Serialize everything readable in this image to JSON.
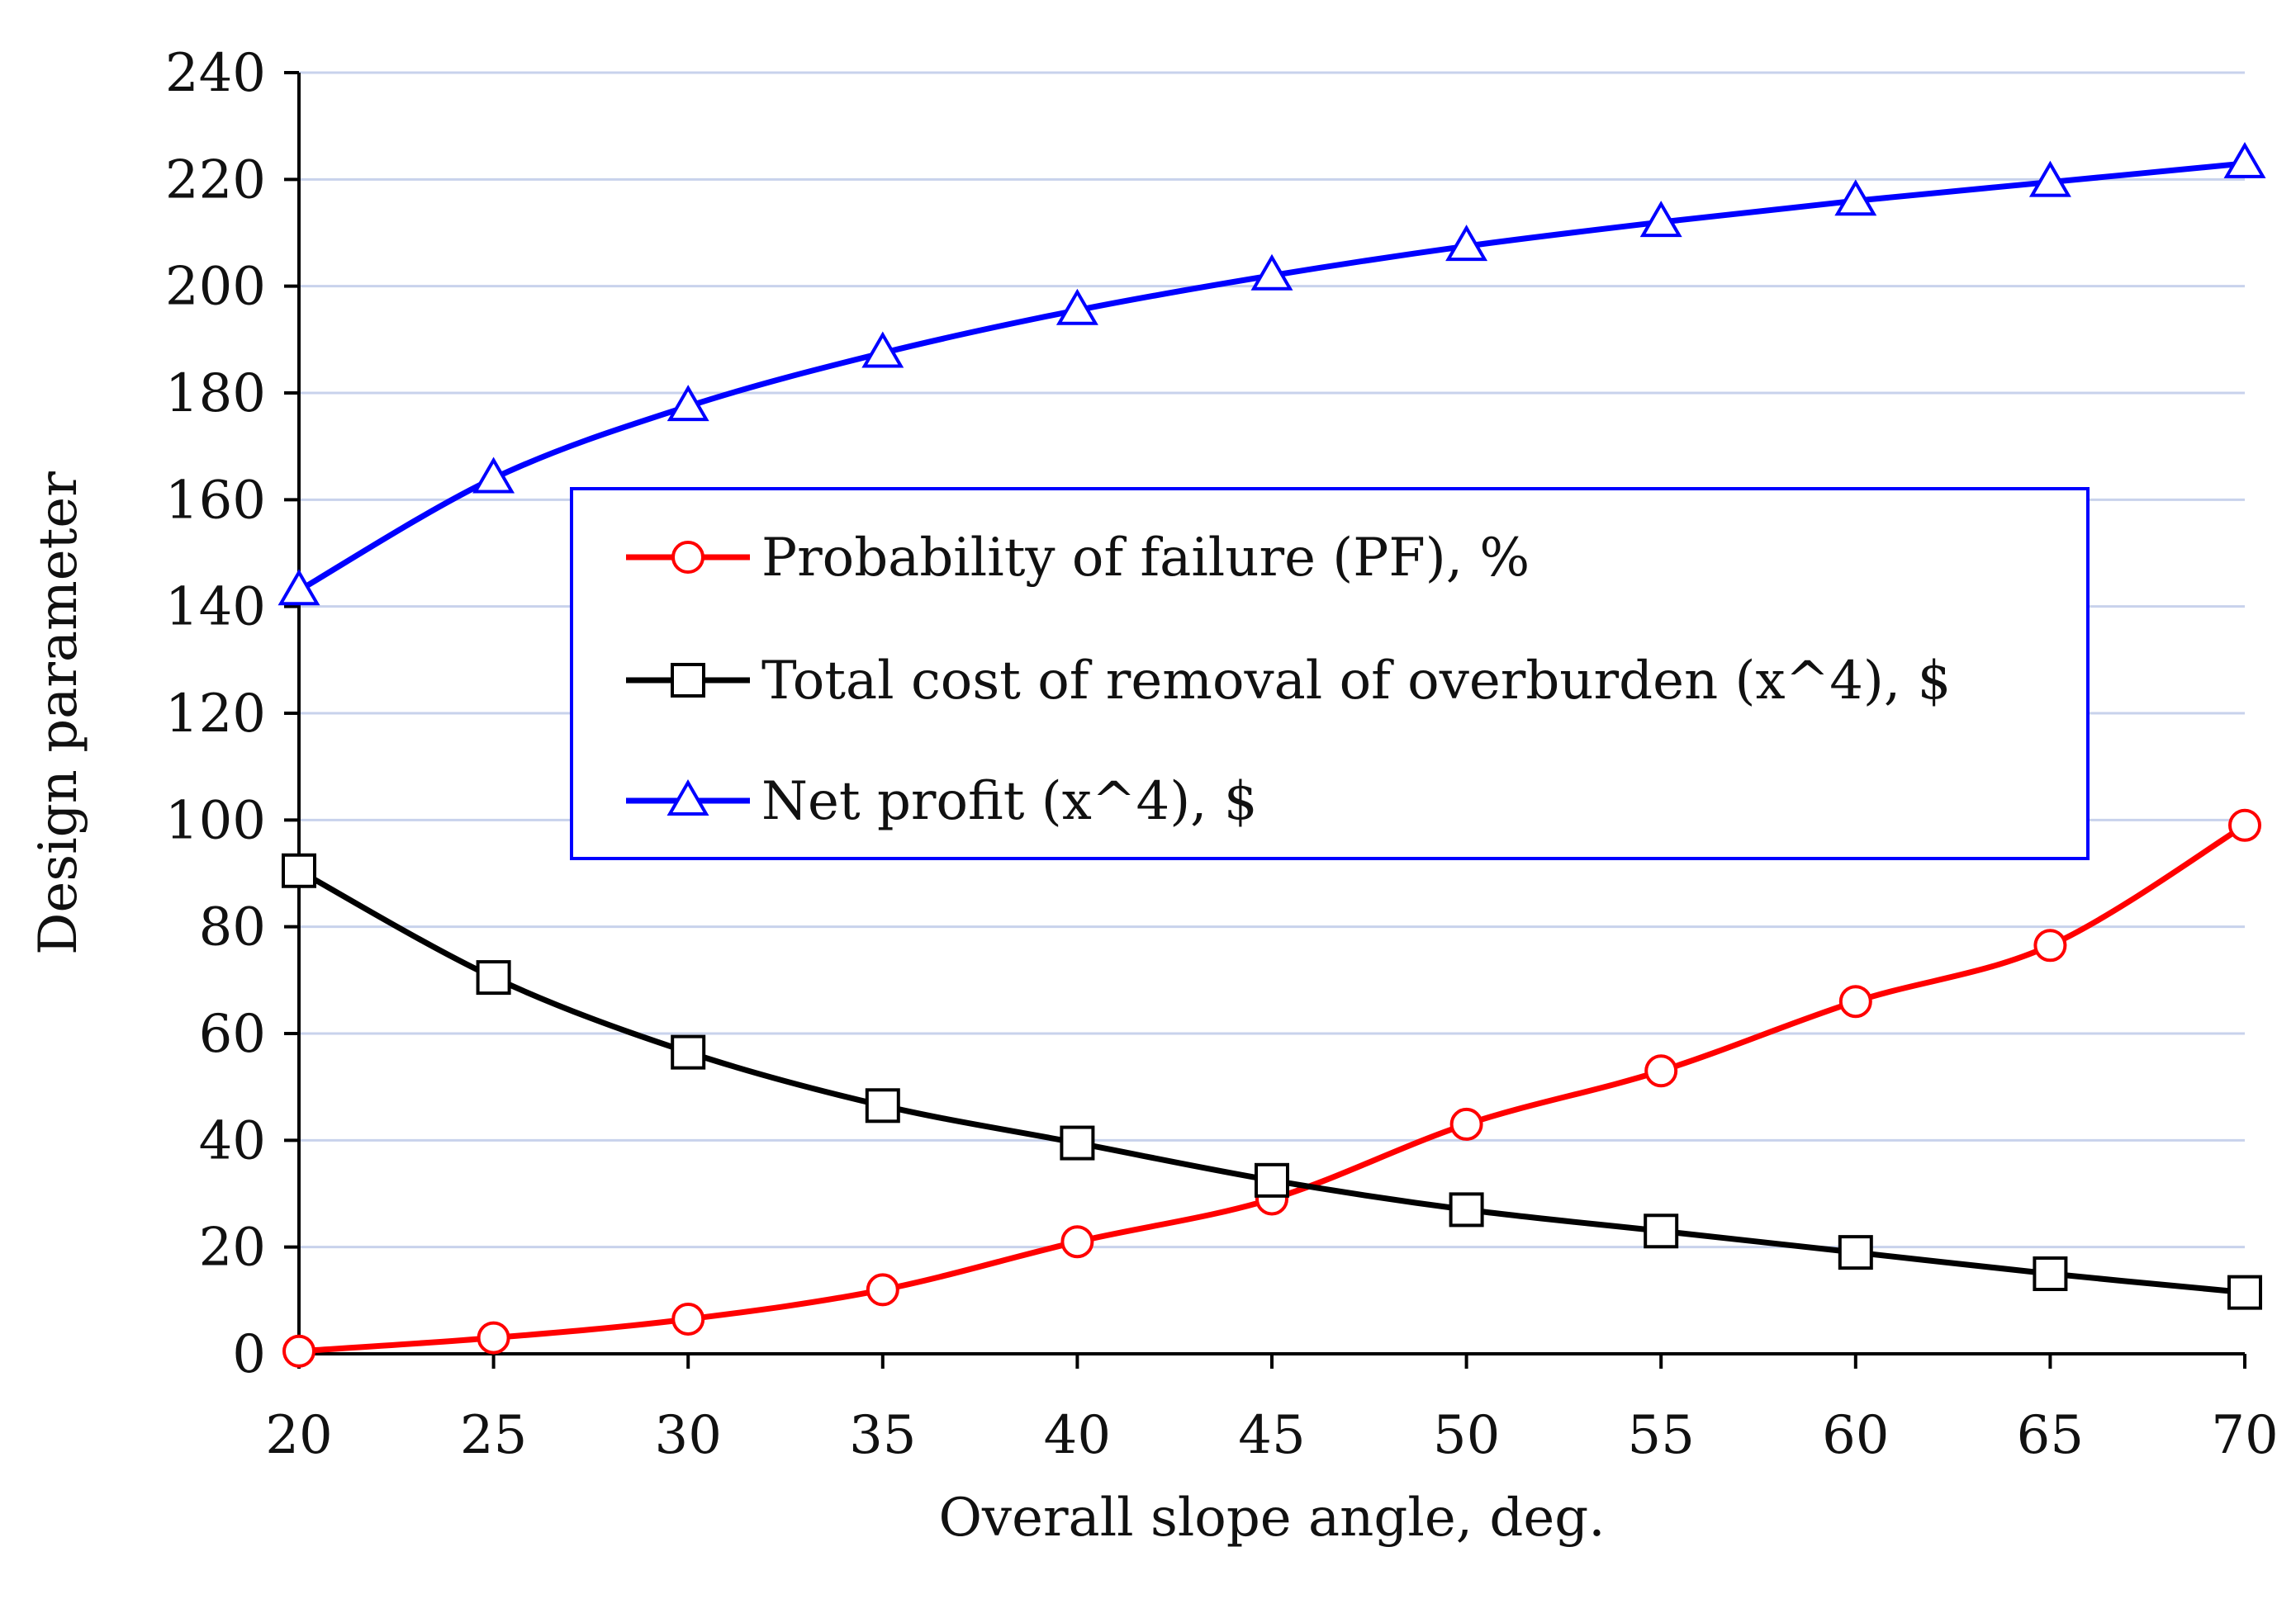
{
  "chart_data": {
    "type": "line",
    "xlabel": "Overall slope angle, deg.",
    "ylabel": "Design parameter",
    "xlim": [
      20,
      70
    ],
    "ylim": [
      0,
      240
    ],
    "x_ticks": [
      20,
      25,
      30,
      35,
      40,
      45,
      50,
      55,
      60,
      65,
      70
    ],
    "y_ticks": [
      0,
      20,
      40,
      60,
      80,
      100,
      120,
      140,
      160,
      180,
      200,
      220,
      240
    ],
    "x_tick_labels": [
      "20",
      "25",
      "30",
      "35",
      "40",
      "45",
      "50",
      "55",
      "60",
      "65",
      "70"
    ],
    "y_tick_labels": [
      "0",
      "20",
      "40",
      "60",
      "80",
      "100",
      "120",
      "140",
      "160",
      "180",
      "200",
      "220",
      "240"
    ],
    "grid": "horizontal",
    "legend_position": "center",
    "x": [
      20,
      25,
      30,
      35,
      40,
      45,
      50,
      55,
      60,
      65,
      70
    ],
    "series": [
      {
        "name": "Probability of failure (PF), %",
        "color": "#ff0000",
        "marker": "circle",
        "values": [
          0.5,
          3,
          6.5,
          12,
          21,
          29,
          43,
          53,
          66,
          76.5,
          99
        ]
      },
      {
        "name": "Total cost of removal of overburden (x^4), $",
        "color": "#000000",
        "marker": "square",
        "values": [
          90.5,
          70.5,
          56.5,
          46.5,
          39.5,
          32.5,
          27,
          23,
          19,
          15,
          11.5
        ]
      },
      {
        "name": "Net profit (x^4), $",
        "color": "#0000ff",
        "marker": "triangle",
        "values": [
          143,
          164,
          177.5,
          187.5,
          195.5,
          202,
          207.5,
          212,
          216,
          219.5,
          223
        ]
      }
    ]
  },
  "colors": {
    "gridline": "#c8d2ec",
    "axis": "#000000",
    "legend_border": "#0000ff"
  }
}
